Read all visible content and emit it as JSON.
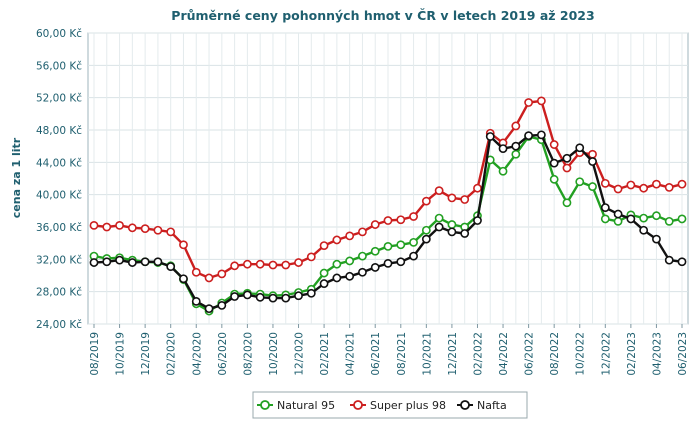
{
  "chart_data": {
    "type": "line",
    "title": "Průměrné ceny pohonných hmot v ČR v letech 2019 až 2023",
    "ylabel": "cena za 1 litr",
    "xlabel": "",
    "ylim": [
      24,
      60
    ],
    "yticks": [
      "24,00 Kč",
      "28,00 Kč",
      "32,00 Kč",
      "36,00 Kč",
      "40,00 Kč",
      "44,00 Kč",
      "48,00 Kč",
      "52,00 Kč",
      "56,00 Kč",
      "60,00 Kč"
    ],
    "ytick_values": [
      24,
      28,
      32,
      36,
      40,
      44,
      48,
      52,
      56,
      60
    ],
    "x": [
      "08/2019",
      "09/2019",
      "10/2019",
      "11/2019",
      "12/2019",
      "01/2020",
      "02/2020",
      "03/2020",
      "04/2020",
      "05/2020",
      "06/2020",
      "07/2020",
      "08/2020",
      "09/2020",
      "10/2020",
      "11/2020",
      "12/2020",
      "01/2021",
      "02/2021",
      "03/2021",
      "04/2021",
      "05/2021",
      "06/2021",
      "07/2021",
      "08/2021",
      "09/2021",
      "10/2021",
      "11/2021",
      "12/2021",
      "01/2022",
      "02/2022",
      "03/2022",
      "04/2022",
      "05/2022",
      "06/2022",
      "07/2022",
      "08/2022",
      "09/2022",
      "10/2022",
      "11/2022",
      "12/2022",
      "01/2023",
      "02/2023",
      "03/2023",
      "04/2023",
      "05/2023",
      "06/2023"
    ],
    "xtick_labels": [
      "08/2019",
      "10/2019",
      "12/2019",
      "02/2020",
      "04/2020",
      "06/2020",
      "08/2020",
      "10/2020",
      "12/2020",
      "02/2021",
      "04/2021",
      "06/2021",
      "08/2021",
      "10/2021",
      "12/2021",
      "02/2022",
      "04/2022",
      "06/2022",
      "08/2022",
      "10/2022",
      "12/2022",
      "02/2023",
      "04/2023",
      "06/2023"
    ],
    "grid": true,
    "legend": "bottom",
    "series": [
      {
        "name": "Natural 95",
        "color": "#22a022",
        "values": [
          32.4,
          32.1,
          32.2,
          31.9,
          31.7,
          31.6,
          31.2,
          29.5,
          26.5,
          25.6,
          26.6,
          27.7,
          27.8,
          27.7,
          27.5,
          27.6,
          27.9,
          28.3,
          30.3,
          31.4,
          31.8,
          32.4,
          33.0,
          33.6,
          33.8,
          34.1,
          35.6,
          37.1,
          36.3,
          36.0,
          37.4,
          44.3,
          42.9,
          45.0,
          47.2,
          46.8,
          41.9,
          39.0,
          41.6,
          41.0,
          37.0,
          36.7,
          37.5,
          37.1,
          37.4,
          36.7,
          37.0
        ]
      },
      {
        "name": "Super plus 98",
        "color": "#cc1f1f",
        "values": [
          36.2,
          36.0,
          36.2,
          35.9,
          35.8,
          35.6,
          35.4,
          33.8,
          30.4,
          29.7,
          30.2,
          31.2,
          31.4,
          31.4,
          31.3,
          31.3,
          31.6,
          32.3,
          33.7,
          34.4,
          34.9,
          35.4,
          36.3,
          36.8,
          36.9,
          37.3,
          39.2,
          40.5,
          39.6,
          39.4,
          40.8,
          47.6,
          46.4,
          48.5,
          51.4,
          51.6,
          46.2,
          43.3,
          45.2,
          45.0,
          41.4,
          40.7,
          41.2,
          40.8,
          41.3,
          40.9,
          41.3
        ]
      },
      {
        "name": "Nafta",
        "color": "#111111",
        "values": [
          31.6,
          31.7,
          31.9,
          31.6,
          31.7,
          31.7,
          31.1,
          29.6,
          26.8,
          25.9,
          26.3,
          27.4,
          27.6,
          27.3,
          27.2,
          27.2,
          27.5,
          27.8,
          29.0,
          29.7,
          29.9,
          30.4,
          31.0,
          31.5,
          31.7,
          32.4,
          34.5,
          36.0,
          35.4,
          35.2,
          36.8,
          47.2,
          45.7,
          46.0,
          47.3,
          47.4,
          43.9,
          44.5,
          45.8,
          44.1,
          38.4,
          37.6,
          37.0,
          35.6,
          34.5,
          31.9,
          31.7
        ]
      }
    ]
  }
}
